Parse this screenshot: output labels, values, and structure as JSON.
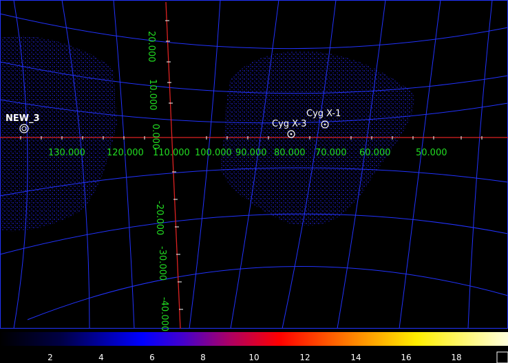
{
  "sky_map": {
    "longitude_labels": [
      "130.000",
      "120.000",
      "110.000",
      "100.000",
      "90.000",
      "80.000",
      "70.000",
      "60.000",
      "50.000"
    ],
    "latitude_labels": [
      "20.000",
      "10.000",
      "0.000",
      "-20.000",
      "-30.000",
      "-40.000"
    ],
    "sources": [
      {
        "name": "Cyg X-1"
      },
      {
        "name": "Cyg X-3"
      },
      {
        "name": "NEW_3"
      }
    ]
  },
  "colorbar": {
    "ticks": [
      "2",
      "4",
      "6",
      "8",
      "10",
      "12",
      "14",
      "16",
      "18"
    ]
  },
  "colors": {
    "grid_lines": "#2233ff",
    "axis_lines": "#dd2222",
    "grid_labels": "#22dd22",
    "source_markers": "#ffffff",
    "background": "#000000"
  }
}
